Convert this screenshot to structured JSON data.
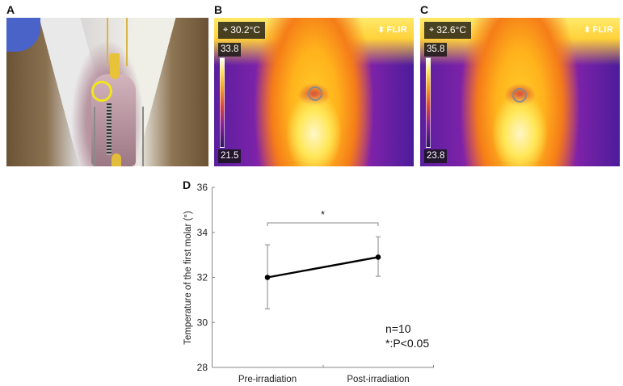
{
  "panels": {
    "A": {
      "label": "A",
      "description": "Photograph of rat oral cavity with yellow circle marking first molar"
    },
    "B": {
      "label": "B",
      "spot_reading": "30.2°C",
      "scale_max": "33.8",
      "scale_min": "21.5",
      "brand": "FLIR",
      "crosshair_icon": "⌖"
    },
    "C": {
      "label": "C",
      "spot_reading": "32.6°C",
      "scale_max": "35.8",
      "scale_min": "23.8",
      "brand": "FLIR",
      "crosshair_icon": "⌖"
    },
    "D": {
      "label": "D",
      "n_text": "n=10",
      "p_text": "*:P<0.05",
      "significance_marker": "*"
    }
  },
  "chart_data": {
    "type": "line",
    "title": "",
    "xlabel": "",
    "ylabel": "Temperature of the first molar (°)",
    "categories": [
      "Pre-irradiation",
      "Post-irradiation"
    ],
    "series": [
      {
        "name": "Temperature",
        "values": [
          32.0,
          32.9
        ],
        "error_upper": [
          33.45,
          33.8
        ],
        "error_lower": [
          30.6,
          32.05
        ],
        "color": "#000000"
      }
    ],
    "ylim": [
      28,
      36
    ],
    "yticks": [
      28,
      30,
      32,
      34,
      36
    ],
    "grid": false,
    "legend": "none",
    "annotations": [
      {
        "text": "*",
        "type": "significance_bracket",
        "between": [
          "Pre-irradiation",
          "Post-irradiation"
        ]
      },
      {
        "text": "n=10"
      },
      {
        "text": "*:P<0.05"
      }
    ]
  },
  "colors": {
    "marker_circle": "#f2e51a",
    "axis": "#888888",
    "errorbar": "#9a9a9a",
    "line": "#000000"
  }
}
